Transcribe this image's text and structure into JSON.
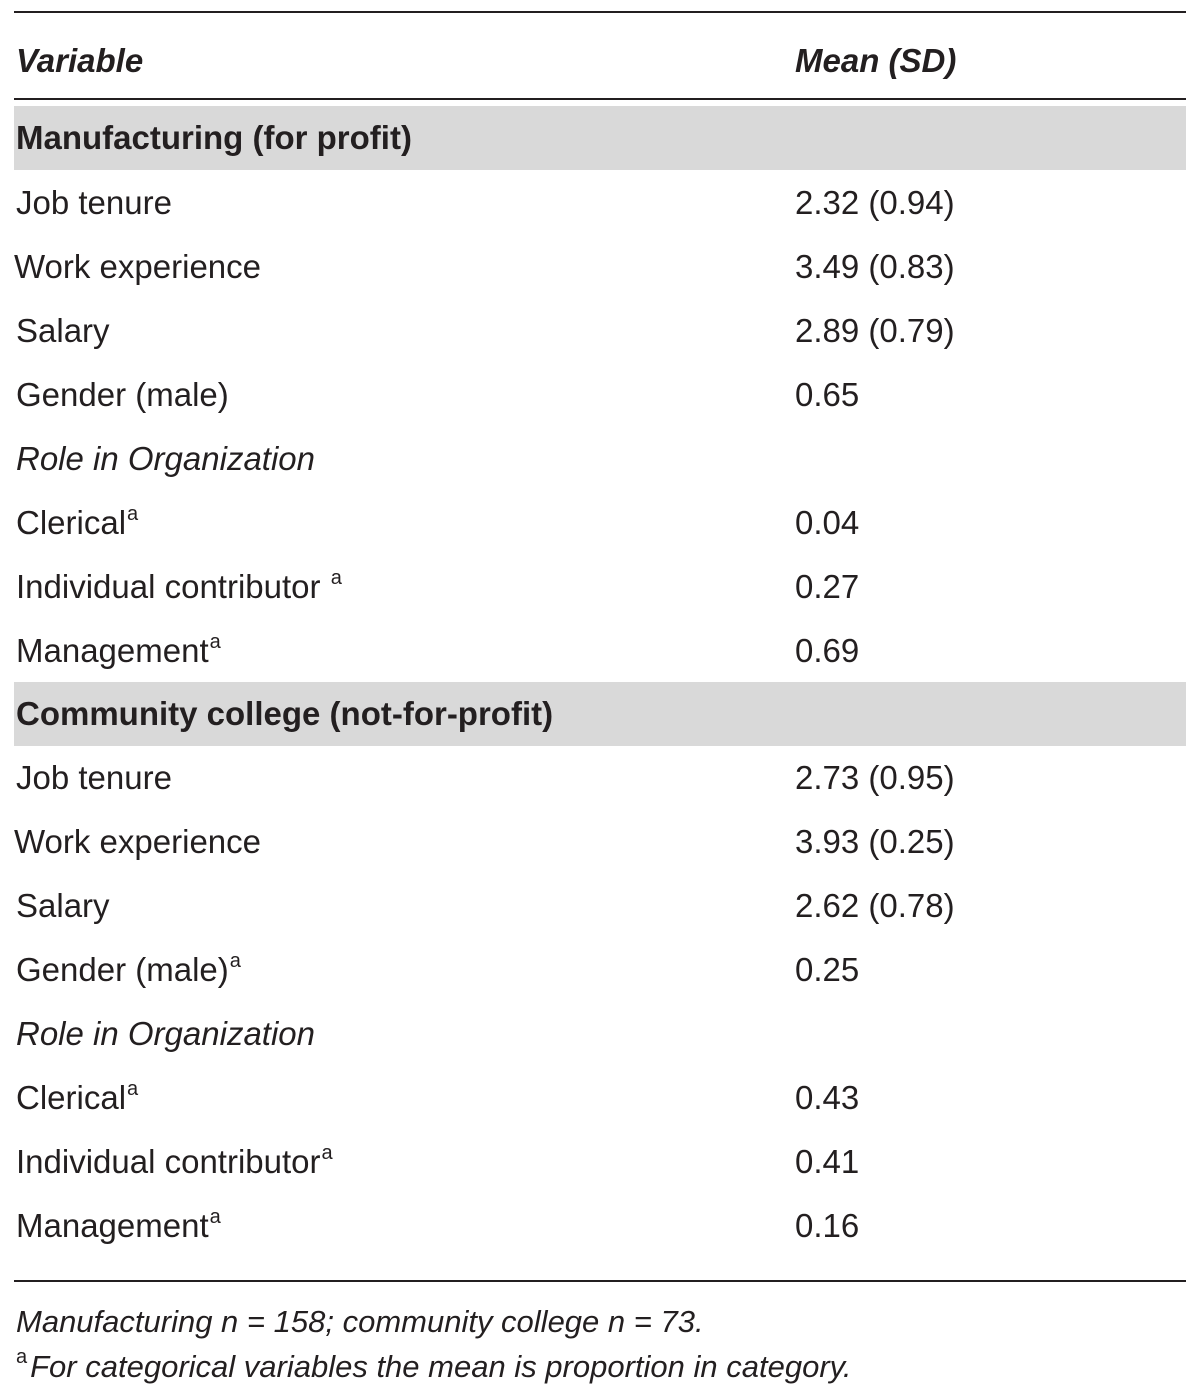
{
  "header": {
    "variable": "Variable",
    "mean_sd": "Mean (SD)"
  },
  "sections": [
    {
      "title": "Manufacturing (for profit)",
      "rows": [
        {
          "label": "Job tenure",
          "value": "2.32 (0.94)"
        },
        {
          "label": "Work experience",
          "value": "3.49 (0.83)"
        },
        {
          "label": "Salary",
          "value": "2.89 (0.79)"
        },
        {
          "label": "Gender (male)",
          "value": "0.65"
        }
      ],
      "role_heading": "Role in Organization",
      "role_rows": [
        {
          "label": "Clerical",
          "sup": "a",
          "value": "0.04"
        },
        {
          "label": "Individual contributor ",
          "sup": "a",
          "value": "0.27"
        },
        {
          "label": "Management",
          "sup": "a",
          "value": "0.69"
        }
      ]
    },
    {
      "title": "Community college (not-for-profit)",
      "rows": [
        {
          "label": "Job tenure",
          "value": "2.73 (0.95)"
        },
        {
          "label": "Work experience",
          "value": "3.93 (0.25)"
        },
        {
          "label": "Salary",
          "value": "2.62 (0.78)"
        },
        {
          "label": "Gender (male)",
          "sup": "a",
          "value": "0.25"
        }
      ],
      "role_heading": "Role in Organization",
      "role_rows": [
        {
          "label": "Clerical",
          "sup": "a",
          "value": "0.43"
        },
        {
          "label": "Individual contributor",
          "sup": "a",
          "value": "0.41"
        },
        {
          "label": "Management",
          "sup": "a",
          "value": "0.16"
        }
      ]
    }
  ],
  "footnotes": {
    "sample_sizes": "Manufacturing n = 158; community college n = 73.",
    "note_marker": "a",
    "note_text": "For categorical variables the mean is proportion in category."
  }
}
